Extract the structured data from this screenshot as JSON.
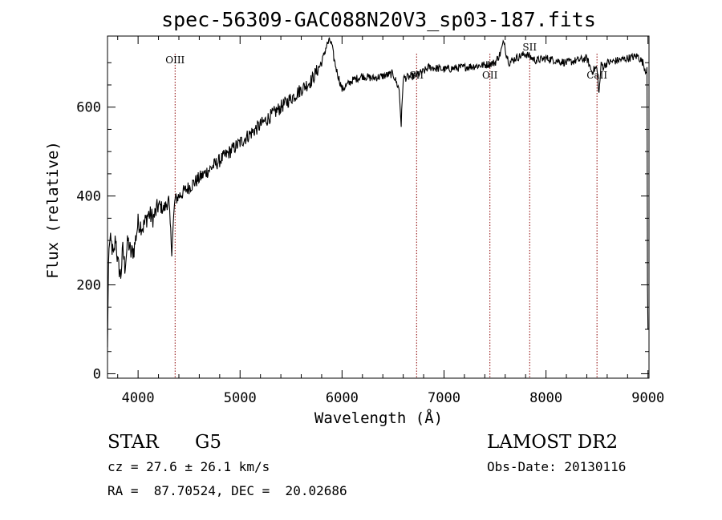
{
  "chart_data": {
    "type": "line",
    "title": "spec-56309-GAC088N20V3_sp03-187.fits",
    "xlabel": "Wavelength (Å)",
    "ylabel": "Flux (relative)",
    "xlim": [
      3700,
      9010
    ],
    "ylim": [
      -10,
      760
    ],
    "xticks": [
      4000,
      5000,
      6000,
      7000,
      8000,
      9000
    ],
    "yticks": [
      0,
      200,
      400,
      600
    ],
    "grid": false,
    "line_color": "#000000",
    "marker_color": "#8b0000",
    "lines": [
      {
        "label": "OIII",
        "x": 4363
      },
      {
        "label": "SII",
        "x": 6731
      },
      {
        "label": "OII",
        "x": 7450
      },
      {
        "label": "SII",
        "x": 7840
      },
      {
        "label": "CaII",
        "x": 8500
      }
    ],
    "series": [
      {
        "x": [
          3700,
          3710,
          3720,
          3740,
          3760,
          3780,
          3800,
          3830,
          3850,
          3870,
          3900,
          3930,
          3960,
          4000,
          4050,
          4100,
          4150,
          4200,
          4250,
          4300,
          4330,
          4360,
          4400,
          4450,
          4500,
          4600,
          4700,
          4800,
          4900,
          5000,
          5100,
          5200,
          5300,
          5400,
          5500,
          5600,
          5700,
          5750,
          5800,
          5850,
          5880,
          5900,
          5920,
          5950,
          6000,
          6050,
          6100,
          6200,
          6300,
          6400,
          6500,
          6560,
          6580,
          6600,
          6700,
          6800,
          6850,
          7000,
          7200,
          7400,
          7500,
          7550,
          7590,
          7610,
          7640,
          7700,
          7800,
          7900,
          8000,
          8100,
          8200,
          8300,
          8400,
          8450,
          8498,
          8520,
          8542,
          8560,
          8600,
          8700,
          8800,
          8900,
          8950,
          8980,
          8990,
          8995,
          9000
        ],
        "y": [
          60,
          250,
          300,
          290,
          260,
          310,
          250,
          220,
          280,
          240,
          300,
          270,
          280,
          340,
          330,
          360,
          350,
          380,
          370,
          390,
          280,
          390,
          400,
          410,
          420,
          440,
          460,
          480,
          500,
          520,
          540,
          560,
          580,
          600,
          620,
          640,
          660,
          680,
          700,
          740,
          750,
          740,
          710,
          680,
          640,
          650,
          660,
          670,
          665,
          670,
          675,
          640,
          560,
          665,
          670,
          680,
          690,
          685,
          690,
          695,
          700,
          720,
          750,
          720,
          700,
          710,
          720,
          705,
          710,
          705,
          700,
          705,
          710,
          680,
          690,
          630,
          700,
          690,
          700,
          705,
          710,
          715,
          700,
          680,
          690,
          200,
          100
        ]
      }
    ]
  },
  "info": {
    "object": "STAR",
    "subclass": "G5",
    "survey": "LAMOST DR2",
    "cz": "cz = 27.6 ± 26.1 km/s",
    "obs_date": "Obs-Date: 20130116",
    "coords": "RA =  87.70524, DEC =  20.02686"
  }
}
